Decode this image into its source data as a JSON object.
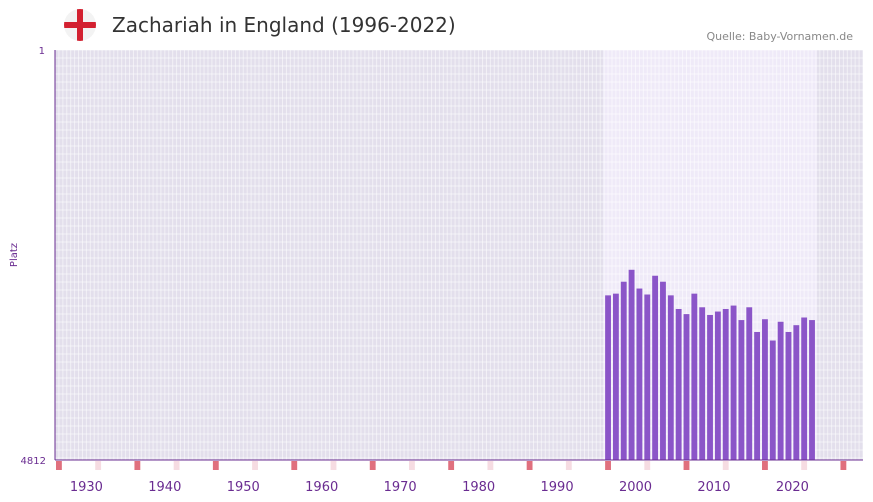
{
  "header": {
    "title": "Zachariah in England (1996-2022)",
    "source": "Quelle: Baby-Vornamen.de",
    "flag_icon": "england-flag-icon"
  },
  "colors": {
    "bar": "#8b55c8",
    "plot_bg": "#e3dfec",
    "active_bg": "#efeaf8",
    "axis": "#6a2c91",
    "decade_marker": "#e0707e",
    "half_marker": "#f6dce2"
  },
  "chart_data": {
    "type": "bar",
    "title": "Zachariah in England (1996-2022)",
    "xlabel": "",
    "ylabel": "Platz",
    "ylim_labels": [
      "1",
      "4812"
    ],
    "y_top": 1,
    "y_bottom": 4812,
    "x_range": [
      1926,
      2029
    ],
    "x_ticks": [
      "1930",
      "1940",
      "1950",
      "1960",
      "1970",
      "1980",
      "1990",
      "2000",
      "2010",
      "2020"
    ],
    "active_range": [
      1996,
      2022
    ],
    "x": [
      1996,
      1997,
      1998,
      1999,
      2000,
      2001,
      2002,
      2003,
      2004,
      2005,
      2006,
      2007,
      2008,
      2009,
      2010,
      2011,
      2012,
      2013,
      2014,
      2015,
      2016,
      2017,
      2018,
      2019,
      2020,
      2021,
      2022
    ],
    "values": [
      2880,
      2860,
      2720,
      2580,
      2800,
      2870,
      2650,
      2720,
      2880,
      3040,
      3100,
      2860,
      3020,
      3110,
      3070,
      3040,
      3000,
      3170,
      3020,
      3310,
      3160,
      3410,
      3190,
      3310,
      3230,
      3140,
      3170
    ]
  }
}
